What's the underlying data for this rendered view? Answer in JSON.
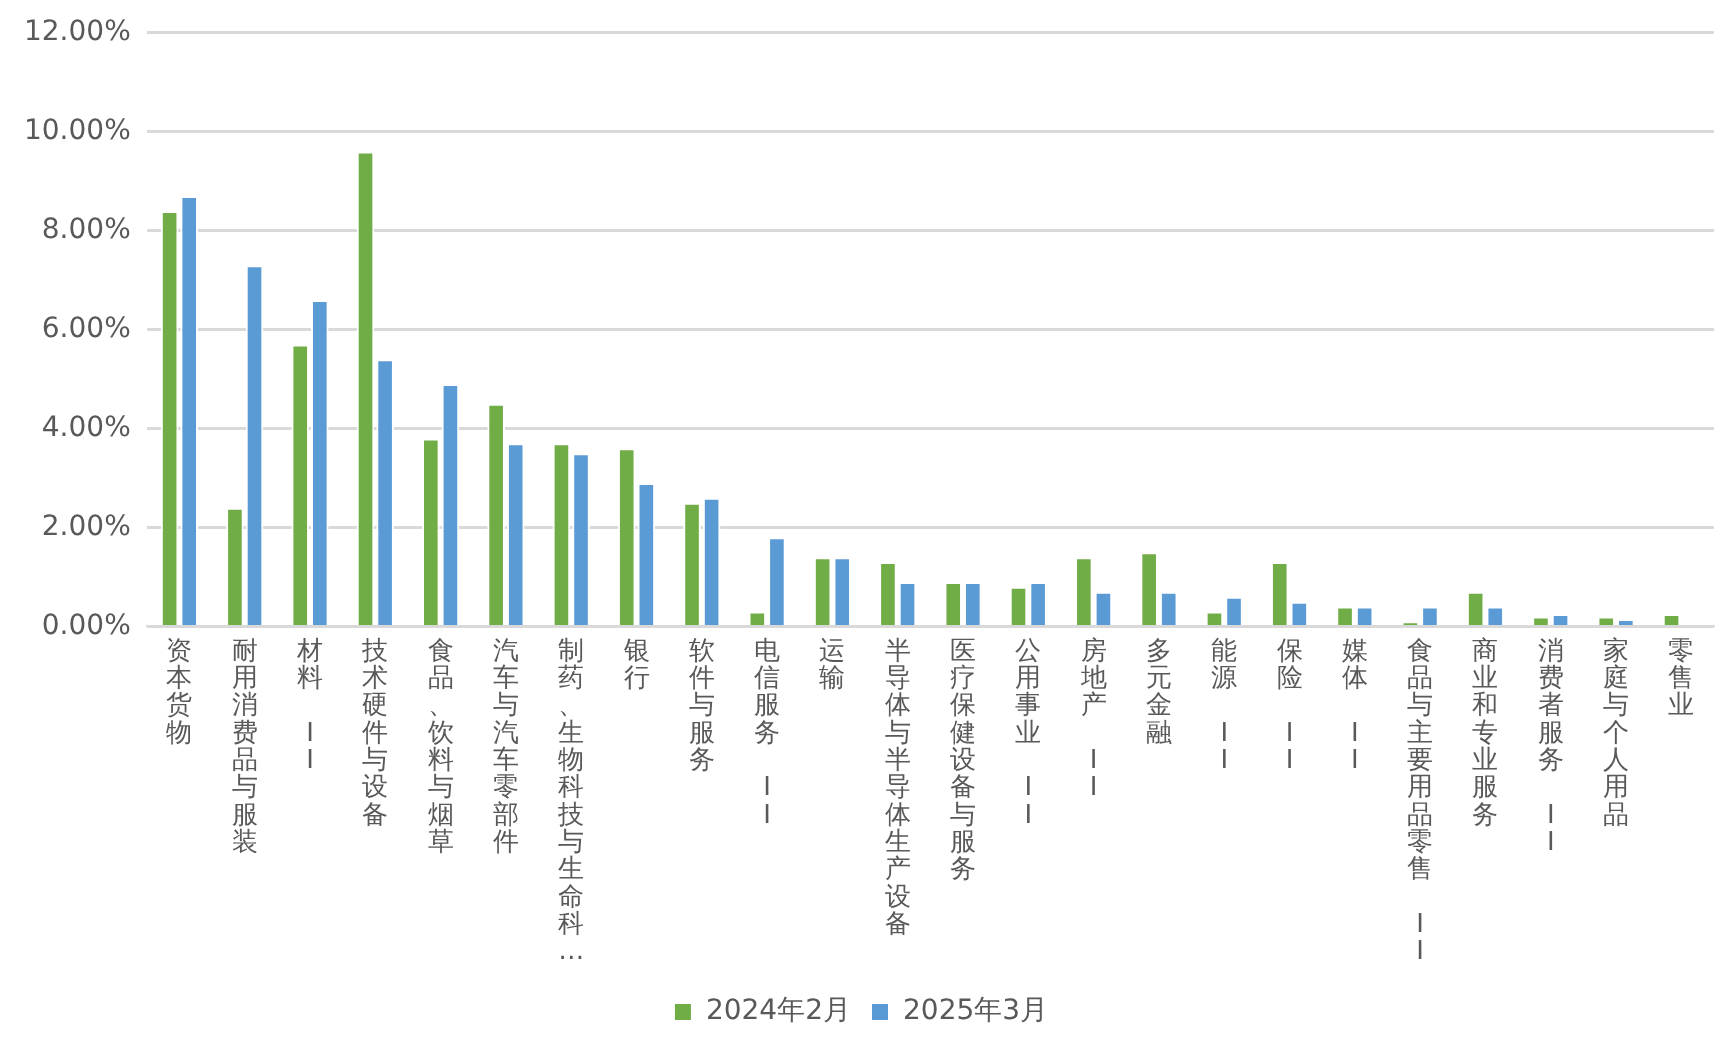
{
  "chart_data": {
    "type": "bar",
    "categories": [
      "资本货物",
      "耐用消费品与服装",
      "材料 II",
      "技术硬件与设备",
      "食品、饮料与烟草",
      "汽车与汽车零部件",
      "制药、生物科技与生命科…",
      "银行",
      "软件与服务",
      "电信服务 II",
      "运输",
      "半导体与半导体生产设备",
      "医疗保健设备与服务",
      "公用事业 II",
      "房地产 II",
      "多元金融",
      "能源 II",
      "保险 II",
      "媒体 II",
      "食品与主要用品零售 II",
      "商业和专业服务",
      "消费者服务 II",
      "家庭与个人用品",
      "零售业"
    ],
    "series": [
      {
        "name": "2024年2月",
        "color": "#70ad47",
        "values": [
          8.4,
          2.4,
          5.7,
          9.6,
          3.8,
          4.5,
          3.7,
          3.6,
          2.5,
          0.3,
          1.4,
          1.3,
          0.9,
          0.8,
          1.4,
          1.5,
          0.3,
          1.3,
          0.4,
          0.1,
          0.7,
          0.2,
          0.2,
          0.25
        ]
      },
      {
        "name": "2025年3月",
        "color": "#5b9bd5",
        "values": [
          8.7,
          7.3,
          6.6,
          5.4,
          4.9,
          3.7,
          3.5,
          2.9,
          2.6,
          1.8,
          1.4,
          0.9,
          0.9,
          0.9,
          0.7,
          0.7,
          0.6,
          0.5,
          0.4,
          0.4,
          0.4,
          0.25,
          0.15,
          null
        ]
      }
    ],
    "ylim": [
      0,
      12
    ],
    "yticks": [
      {
        "value": 0,
        "label": "0.00%"
      },
      {
        "value": 2,
        "label": "2.00%"
      },
      {
        "value": 4,
        "label": "4.00%"
      },
      {
        "value": 6,
        "label": "6.00%"
      },
      {
        "value": 8,
        "label": "8.00%"
      },
      {
        "value": 10,
        "label": "10.00%"
      },
      {
        "value": 12,
        "label": "12.00%"
      }
    ],
    "grid": "y",
    "legend": "bottom"
  }
}
